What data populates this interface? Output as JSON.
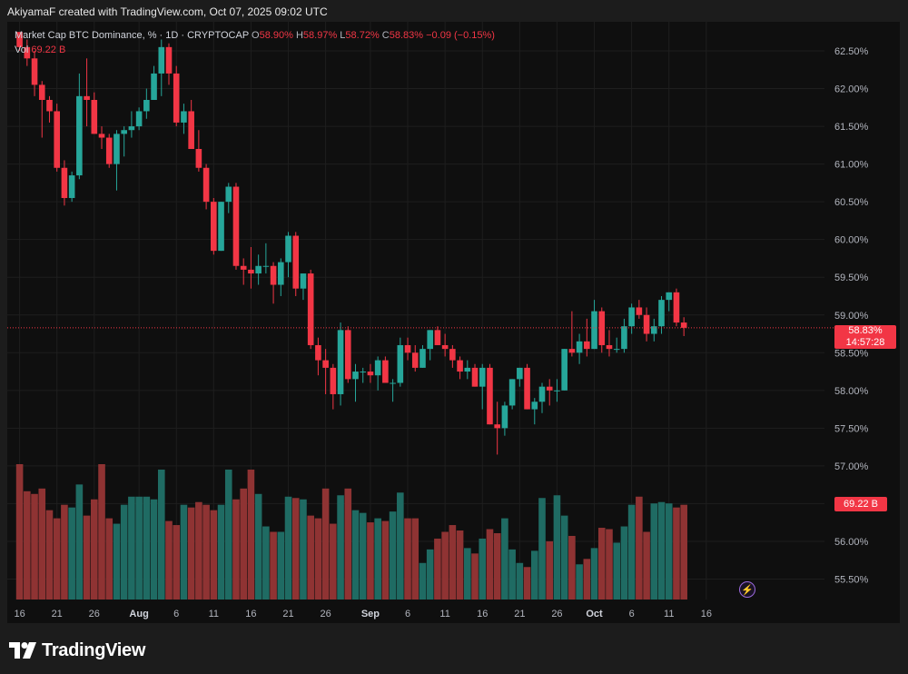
{
  "header": {
    "credit": "AkiyamaF created with TradingView.com, Oct 07, 2025 09:02 UTC"
  },
  "legend": {
    "symbol": "Market Cap BTC Dominance, % · 1D · CRYPTOCAP",
    "o_label": "O",
    "o_value": "58.90%",
    "h_label": "H",
    "h_value": "58.97%",
    "l_label": "L",
    "l_value": "58.72%",
    "c_label": "C",
    "c_value": "58.83%",
    "change": "−0.09 (−0.15%)",
    "vol_label": "Vol",
    "vol_value": "69.22 B"
  },
  "price_tag": {
    "price": "58.83%",
    "countdown": "14:57:28"
  },
  "volume_tag": "69.22 B",
  "brand": {
    "name": "TradingView",
    "logo_icon": "tradingview-logo-icon"
  },
  "colors": {
    "up": "#26a69a",
    "down": "#f23645",
    "up_volume": "#1f6b63",
    "down_volume": "#8f3333",
    "background": "#0f0f0f"
  },
  "chart_data": {
    "type": "candlestick",
    "title": "Market Cap BTC Dominance, % · 1D · CRYPTOCAP",
    "y_ticks": [
      "62.50%",
      "62.00%",
      "61.50%",
      "61.00%",
      "60.50%",
      "60.00%",
      "59.50%",
      "59.00%",
      "58.50%",
      "58.00%",
      "57.50%",
      "57.00%",
      "56.50%",
      "56.00%",
      "55.50%"
    ],
    "x_ticks": [
      {
        "label": "16",
        "index": 0
      },
      {
        "label": "21",
        "index": 5
      },
      {
        "label": "26",
        "index": 10
      },
      {
        "label": "Aug",
        "index": 16
      },
      {
        "label": "6",
        "index": 21
      },
      {
        "label": "11",
        "index": 26
      },
      {
        "label": "16",
        "index": 31
      },
      {
        "label": "21",
        "index": 36
      },
      {
        "label": "26",
        "index": 41
      },
      {
        "label": "Sep",
        "index": 47
      },
      {
        "label": "6",
        "index": 52
      },
      {
        "label": "11",
        "index": 57
      },
      {
        "label": "16",
        "index": 62
      },
      {
        "label": "21",
        "index": 67
      },
      {
        "label": "26",
        "index": 72
      },
      {
        "label": "Oct",
        "index": 77
      },
      {
        "label": "6",
        "index": 82
      },
      {
        "label": "11",
        "index": 87
      },
      {
        "label": "16",
        "index": 92
      }
    ],
    "ylim": [
      55.3,
      62.75
    ],
    "last_price": 58.83,
    "candles": [
      [
        62.75,
        62.75,
        62.5,
        62.55
      ],
      [
        62.55,
        62.65,
        62.3,
        62.4
      ],
      [
        62.4,
        62.5,
        61.9,
        62.05
      ],
      [
        62.05,
        62.1,
        61.35,
        61.85
      ],
      [
        61.85,
        61.9,
        61.55,
        61.7
      ],
      [
        61.7,
        61.8,
        60.9,
        60.95
      ],
      [
        60.95,
        61.05,
        60.45,
        60.55
      ],
      [
        60.55,
        60.9,
        60.5,
        60.85
      ],
      [
        60.85,
        62.2,
        60.8,
        61.9
      ],
      [
        61.9,
        62.4,
        61.5,
        61.85
      ],
      [
        61.85,
        61.95,
        61.4,
        61.4
      ],
      [
        61.4,
        61.5,
        61.2,
        61.35
      ],
      [
        61.35,
        61.4,
        60.95,
        61.0
      ],
      [
        61.0,
        61.45,
        60.65,
        61.4
      ],
      [
        61.4,
        61.5,
        61.1,
        61.45
      ],
      [
        61.45,
        61.7,
        61.35,
        61.5
      ],
      [
        61.5,
        61.75,
        61.45,
        61.7
      ],
      [
        61.7,
        62.0,
        61.6,
        61.85
      ],
      [
        61.85,
        62.3,
        61.85,
        62.2
      ],
      [
        62.2,
        62.65,
        61.9,
        62.55
      ],
      [
        62.55,
        62.6,
        62.05,
        62.2
      ],
      [
        62.2,
        62.3,
        61.5,
        61.55
      ],
      [
        61.55,
        61.8,
        61.4,
        61.7
      ],
      [
        61.7,
        61.85,
        61.2,
        61.2
      ],
      [
        61.2,
        61.45,
        60.9,
        60.95
      ],
      [
        60.95,
        61.0,
        60.4,
        60.5
      ],
      [
        60.5,
        60.55,
        59.8,
        59.85
      ],
      [
        59.85,
        60.5,
        59.85,
        60.5
      ],
      [
        60.5,
        60.75,
        60.35,
        60.7
      ],
      [
        60.7,
        60.75,
        59.6,
        59.65
      ],
      [
        59.65,
        59.75,
        59.4,
        59.6
      ],
      [
        59.6,
        59.9,
        59.35,
        59.55
      ],
      [
        59.55,
        59.8,
        59.4,
        59.65
      ],
      [
        59.65,
        59.95,
        59.55,
        59.65
      ],
      [
        59.65,
        59.7,
        59.15,
        59.4
      ],
      [
        59.4,
        59.75,
        59.25,
        59.7
      ],
      [
        59.7,
        60.1,
        59.5,
        60.05
      ],
      [
        60.05,
        60.1,
        59.25,
        59.35
      ],
      [
        59.35,
        59.55,
        59.2,
        59.55
      ],
      [
        59.55,
        59.6,
        58.55,
        58.6
      ],
      [
        58.6,
        58.7,
        58.2,
        58.4
      ],
      [
        58.4,
        58.55,
        57.95,
        58.3
      ],
      [
        58.3,
        58.35,
        57.75,
        57.95
      ],
      [
        57.95,
        58.9,
        57.8,
        58.8
      ],
      [
        58.8,
        58.85,
        58.1,
        58.15
      ],
      [
        58.15,
        58.35,
        57.85,
        58.25
      ],
      [
        58.25,
        58.3,
        58.1,
        58.25
      ],
      [
        58.25,
        58.35,
        58.1,
        58.2
      ],
      [
        58.2,
        58.45,
        58.0,
        58.4
      ],
      [
        58.4,
        58.45,
        58.1,
        58.1
      ],
      [
        58.1,
        58.15,
        57.85,
        58.1
      ],
      [
        58.1,
        58.7,
        58.05,
        58.6
      ],
      [
        58.6,
        58.7,
        58.4,
        58.5
      ],
      [
        58.5,
        58.6,
        58.25,
        58.3
      ],
      [
        58.3,
        58.6,
        58.3,
        58.55
      ],
      [
        58.55,
        58.8,
        58.4,
        58.8
      ],
      [
        58.8,
        58.85,
        58.6,
        58.6
      ],
      [
        58.6,
        58.75,
        58.45,
        58.55
      ],
      [
        58.55,
        58.6,
        58.3,
        58.4
      ],
      [
        58.4,
        58.45,
        58.15,
        58.25
      ],
      [
        58.25,
        58.4,
        58.15,
        58.3
      ],
      [
        58.3,
        58.35,
        58.05,
        58.05
      ],
      [
        58.05,
        58.35,
        57.75,
        58.3
      ],
      [
        58.3,
        58.35,
        57.55,
        57.55
      ],
      [
        57.55,
        57.85,
        57.15,
        57.5
      ],
      [
        57.5,
        57.85,
        57.4,
        57.8
      ],
      [
        57.8,
        58.15,
        57.75,
        58.15
      ],
      [
        58.15,
        58.3,
        58.05,
        58.3
      ],
      [
        58.3,
        58.35,
        57.75,
        57.75
      ],
      [
        57.75,
        57.9,
        57.55,
        57.85
      ],
      [
        57.85,
        58.1,
        57.7,
        58.05
      ],
      [
        58.05,
        58.15,
        57.8,
        58.0
      ],
      [
        58.0,
        58.15,
        57.85,
        58.0
      ],
      [
        58.0,
        58.55,
        58.0,
        58.55
      ],
      [
        58.55,
        59.05,
        58.45,
        58.5
      ],
      [
        58.5,
        58.75,
        58.35,
        58.65
      ],
      [
        58.65,
        58.95,
        58.45,
        58.55
      ],
      [
        58.55,
        59.2,
        58.55,
        59.05
      ],
      [
        59.05,
        59.1,
        58.5,
        58.6
      ],
      [
        58.6,
        58.8,
        58.45,
        58.55
      ],
      [
        58.55,
        58.7,
        58.5,
        58.55
      ],
      [
        58.55,
        58.95,
        58.5,
        58.85
      ],
      [
        58.85,
        59.15,
        58.75,
        59.1
      ],
      [
        59.1,
        59.2,
        58.95,
        59.0
      ],
      [
        59.0,
        59.1,
        58.65,
        58.75
      ],
      [
        58.75,
        58.95,
        58.65,
        58.85
      ],
      [
        58.85,
        59.25,
        58.75,
        59.2
      ],
      [
        59.2,
        59.3,
        59.05,
        59.3
      ],
      [
        59.3,
        59.35,
        58.85,
        58.9
      ],
      [
        58.9,
        58.97,
        58.72,
        58.83
      ]
    ],
    "volume_relative": [
      1.0,
      0.8,
      0.78,
      0.82,
      0.66,
      0.6,
      0.7,
      0.68,
      0.85,
      0.62,
      0.74,
      1.0,
      0.6,
      0.56,
      0.7,
      0.76,
      0.76,
      0.76,
      0.74,
      0.96,
      0.58,
      0.55,
      0.7,
      0.68,
      0.72,
      0.7,
      0.66,
      0.7,
      0.96,
      0.74,
      0.82,
      0.96,
      0.78,
      0.54,
      0.5,
      0.5,
      0.76,
      0.75,
      0.74,
      0.62,
      0.6,
      0.82,
      0.56,
      0.77,
      0.82,
      0.66,
      0.64,
      0.57,
      0.6,
      0.58,
      0.65,
      0.79,
      0.6,
      0.6,
      0.27,
      0.37,
      0.45,
      0.5,
      0.55,
      0.51,
      0.38,
      0.34,
      0.45,
      0.52,
      0.49,
      0.6,
      0.37,
      0.27,
      0.24,
      0.36,
      0.75,
      0.43,
      0.77,
      0.62,
      0.47,
      0.26,
      0.3,
      0.38,
      0.53,
      0.52,
      0.42,
      0.54,
      0.7,
      0.76,
      0.5,
      0.71,
      0.72,
      0.71,
      0.68,
      0.7
    ]
  }
}
